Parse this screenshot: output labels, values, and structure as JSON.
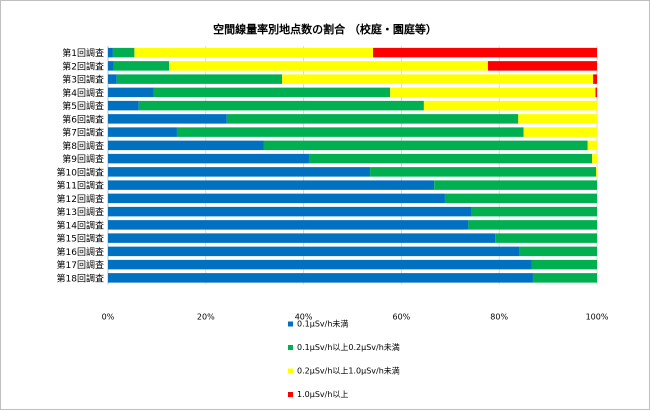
{
  "chart_data": {
    "type": "bar",
    "orientation": "horizontal",
    "stacked": "percent",
    "title": "空間線量率別地点数の割合 （校庭・園庭等）",
    "xlabel": "",
    "ylabel": "",
    "xlim": [
      0,
      100
    ],
    "x_ticks": [
      "0%",
      "20%",
      "40%",
      "60%",
      "80%",
      "100%"
    ],
    "grid": true,
    "legend_position": "bottom",
    "categories": [
      "第1回調査",
      "第2回調査",
      "第3回調査",
      "第4回調査",
      "第5回調査",
      "第6回調査",
      "第7回調査",
      "第8回調査",
      "第9回調査",
      "第10回調査",
      "第11回調査",
      "第12回調査",
      "第13回調査",
      "第14回調査",
      "第15回調査",
      "第16回調査",
      "第17回調査",
      "第18回調査"
    ],
    "series": [
      {
        "name": "0.1μSv/h未満",
        "color": "#0070c0",
        "values": [
          1.0,
          1.2,
          1.8,
          9.3,
          6.3,
          24.3,
          14.1,
          31.8,
          41.1,
          53.6,
          66.7,
          68.9,
          74.4,
          73.7,
          79.2,
          84.2,
          86.6,
          86.9
        ]
      },
      {
        "name": "0.1μSv/h以上0.2μSv/h未満",
        "color": "#00b050",
        "values": [
          4.4,
          11.3,
          33.8,
          48.4,
          58.3,
          59.6,
          70.9,
          66.3,
          57.9,
          46.2,
          33.3,
          31.1,
          25.6,
          26.3,
          20.8,
          15.8,
          13.4,
          13.1
        ]
      },
      {
        "name": "0.2μSv/h以上1.0μSv/h未満",
        "color": "#ffff00",
        "values": [
          48.8,
          65.2,
          63.6,
          42.0,
          35.4,
          16.1,
          15.0,
          1.9,
          1.0,
          0.2,
          0,
          0,
          0,
          0,
          0,
          0,
          0,
          0
        ]
      },
      {
        "name": "1.0μSv/h以上",
        "color": "#ff0000",
        "values": [
          45.8,
          22.3,
          0.8,
          0.3,
          0,
          0,
          0,
          0,
          0,
          0,
          0,
          0,
          0,
          0,
          0,
          0,
          0,
          0
        ]
      }
    ]
  }
}
